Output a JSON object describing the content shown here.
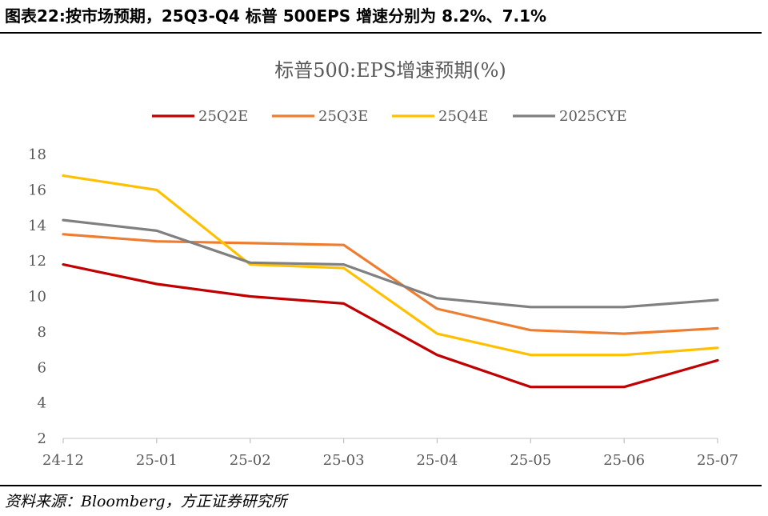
{
  "figure": {
    "caption": "图表22:按市场预期，25Q3-Q4 标普 500EPS 增速分别为 8.2%、7.1%",
    "source": "资料来源：Bloomberg，方正证券研究所"
  },
  "chart_data": {
    "type": "line",
    "title": "标普500:EPS增速预期(%)",
    "xlabel": "",
    "ylabel": "",
    "categories": [
      "24-12",
      "25-01",
      "25-02",
      "25-03",
      "25-04",
      "25-05",
      "25-06",
      "25-07"
    ],
    "ylim": [
      2,
      18
    ],
    "yticks": [
      2,
      4,
      6,
      8,
      10,
      12,
      14,
      16,
      18
    ],
    "grid": false,
    "legend_position": "top",
    "series": [
      {
        "name": "25Q2E",
        "color": "#C00000",
        "values": [
          11.8,
          10.7,
          10.0,
          9.6,
          6.7,
          4.9,
          4.9,
          6.4
        ]
      },
      {
        "name": "25Q3E",
        "color": "#ED7D31",
        "values": [
          13.5,
          13.1,
          13.0,
          12.9,
          9.3,
          8.1,
          7.9,
          8.2
        ]
      },
      {
        "name": "25Q4E",
        "color": "#FFC000",
        "values": [
          16.8,
          16.0,
          11.8,
          11.6,
          7.9,
          6.7,
          6.7,
          7.1
        ]
      },
      {
        "name": "2025CYE",
        "color": "#808080",
        "values": [
          14.3,
          13.7,
          11.9,
          11.8,
          9.9,
          9.4,
          9.4,
          9.8
        ]
      }
    ]
  }
}
